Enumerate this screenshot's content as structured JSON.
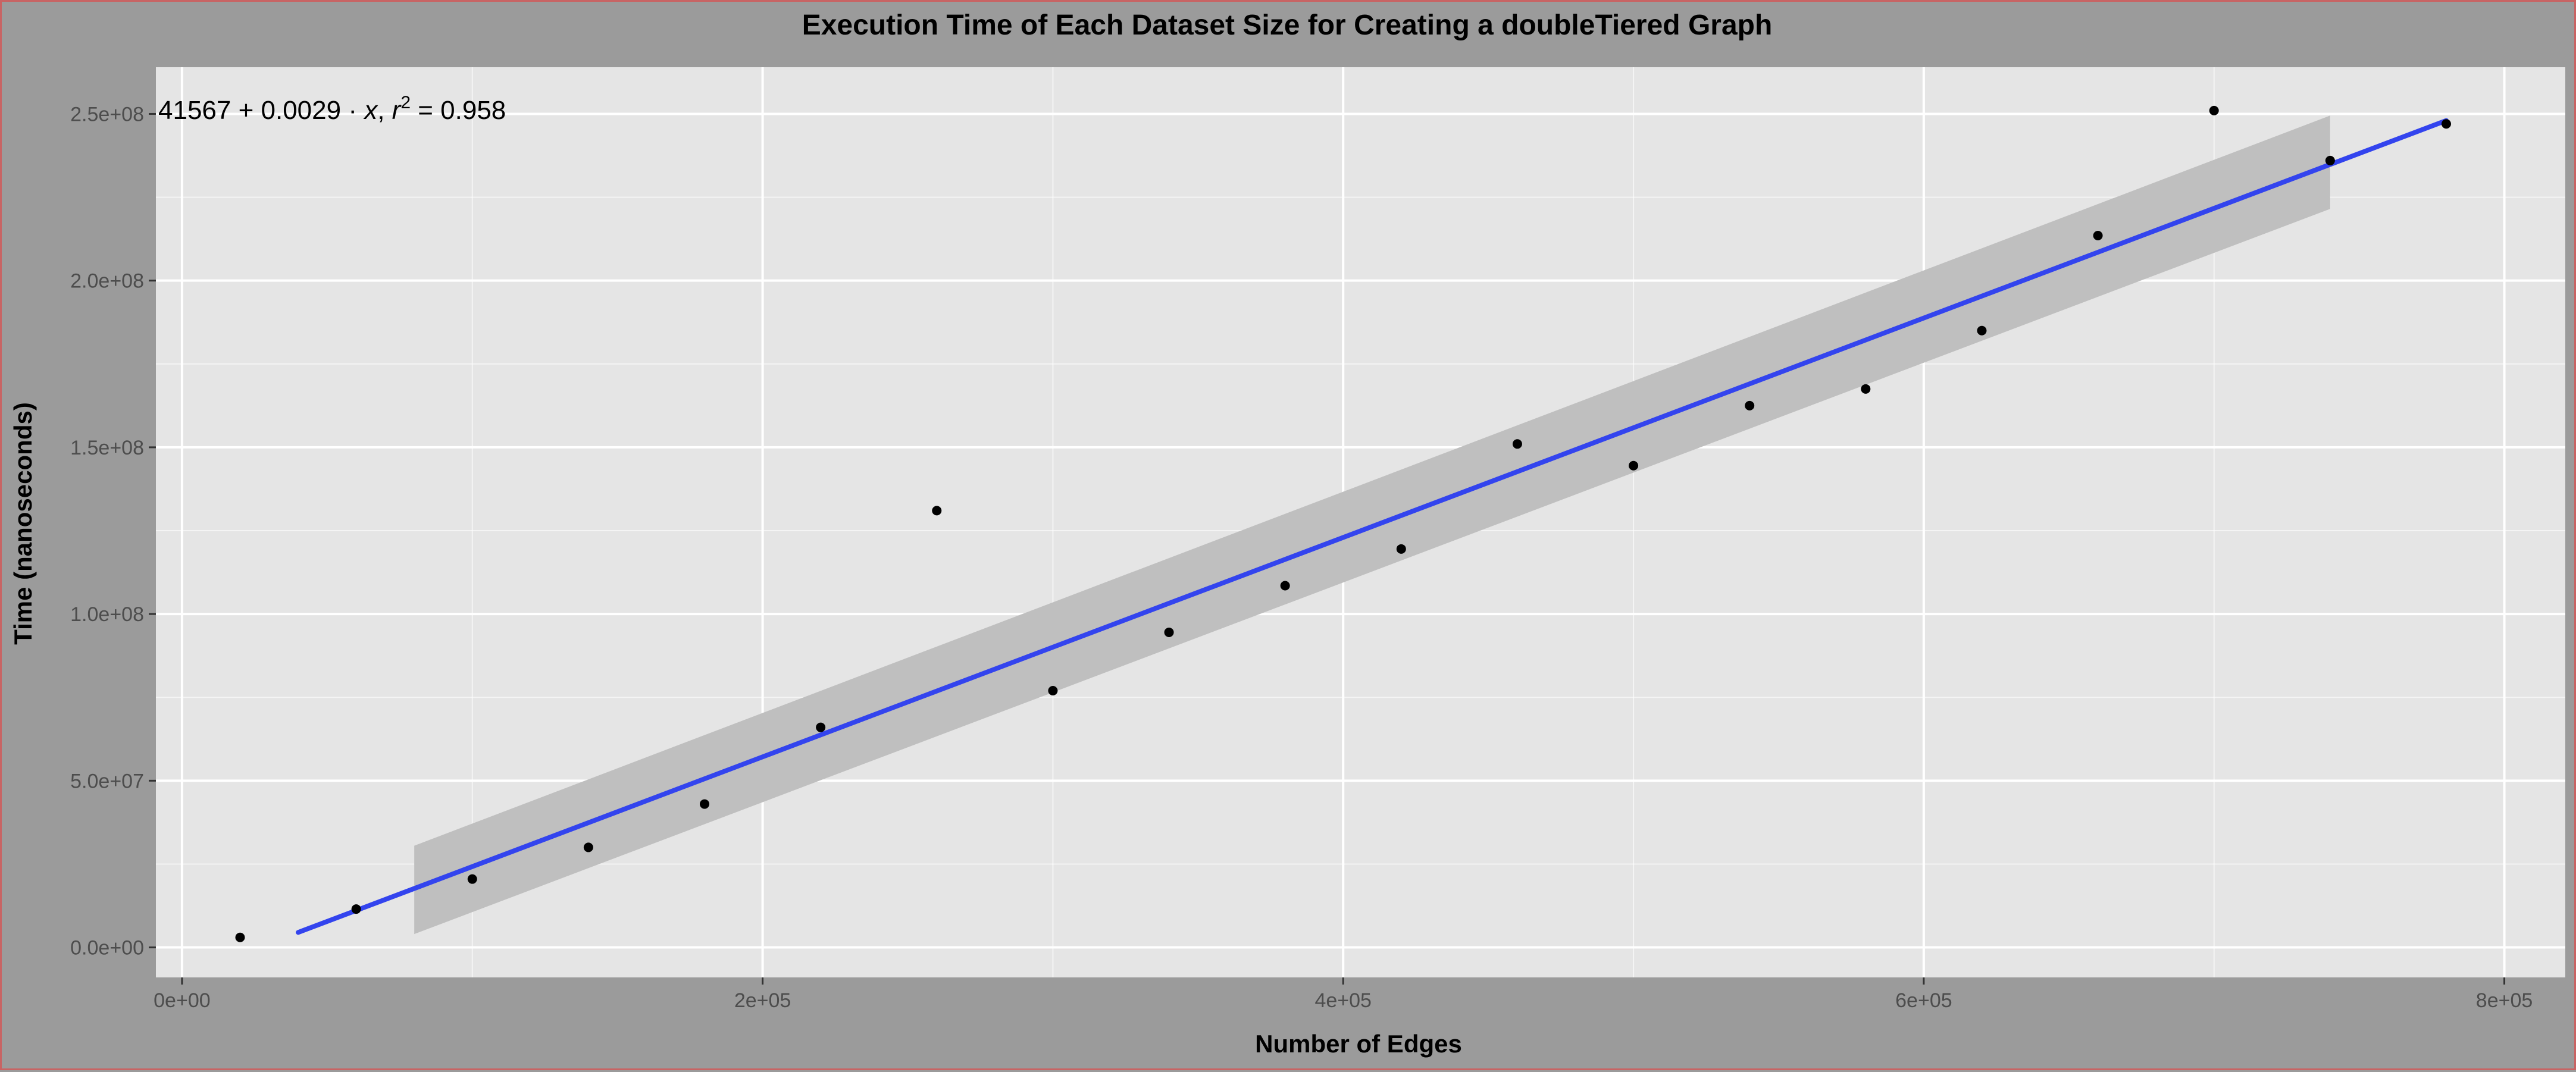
{
  "chart_data": {
    "type": "scatter",
    "title": "Execution Time of Each Dataset Size for Creating a doubleTiered Graph",
    "xlabel": "Number of Edges",
    "ylabel": "Time (nanoseconds)",
    "xlim": [
      -9000,
      821000
    ],
    "ylim": [
      -9000000,
      264000000
    ],
    "x_ticks": [
      0,
      200000,
      400000,
      600000,
      800000
    ],
    "x_tick_labels": [
      "0e+00",
      "2e+05",
      "4e+05",
      "6e+05",
      "8e+05"
    ],
    "y_ticks": [
      0,
      50000000,
      100000000,
      150000000,
      200000000,
      250000000
    ],
    "y_tick_labels": [
      "0.0e+00",
      "5.0e+07",
      "1.0e+08",
      "1.5e+08",
      "2.0e+08",
      "2.5e+08"
    ],
    "grid": true,
    "annotation": {
      "intercept": "41567",
      "slope": "0.0029",
      "x_symbol": "x",
      "r_symbol": "r",
      "r_exponent": "2",
      "r_squared": "0.958"
    },
    "points": [
      {
        "x": 20000,
        "y": 3000000
      },
      {
        "x": 60000,
        "y": 11500000
      },
      {
        "x": 100000,
        "y": 20500000
      },
      {
        "x": 140000,
        "y": 30000000
      },
      {
        "x": 180000,
        "y": 43000000
      },
      {
        "x": 220000,
        "y": 66000000
      },
      {
        "x": 260000,
        "y": 131000000
      },
      {
        "x": 300000,
        "y": 77000000
      },
      {
        "x": 340000,
        "y": 94500000
      },
      {
        "x": 380000,
        "y": 108500000
      },
      {
        "x": 420000,
        "y": 119500000
      },
      {
        "x": 460000,
        "y": 151000000
      },
      {
        "x": 500000,
        "y": 144500000
      },
      {
        "x": 540000,
        "y": 162500000
      },
      {
        "x": 580000,
        "y": 167500000
      },
      {
        "x": 620000,
        "y": 185000000
      },
      {
        "x": 660000,
        "y": 213500000
      },
      {
        "x": 700000,
        "y": 251000000
      },
      {
        "x": 740000,
        "y": 236000000
      },
      {
        "x": 780000,
        "y": 247000000
      }
    ],
    "fit_line": {
      "x": [
        40000,
        780000
      ],
      "y": [
        4500000,
        248000000
      ],
      "color": "#3344ee"
    },
    "confidence_band": {
      "x": [
        80000,
        740000
      ],
      "upper": [
        30500000,
        249500000
      ],
      "lower": [
        4000000,
        221500000
      ],
      "color": "#bfbfbf"
    },
    "colors": {
      "panel": "#e5e5e5",
      "background": "#9b9b9b",
      "gridline": "#ffffff",
      "point": "#000000"
    }
  }
}
